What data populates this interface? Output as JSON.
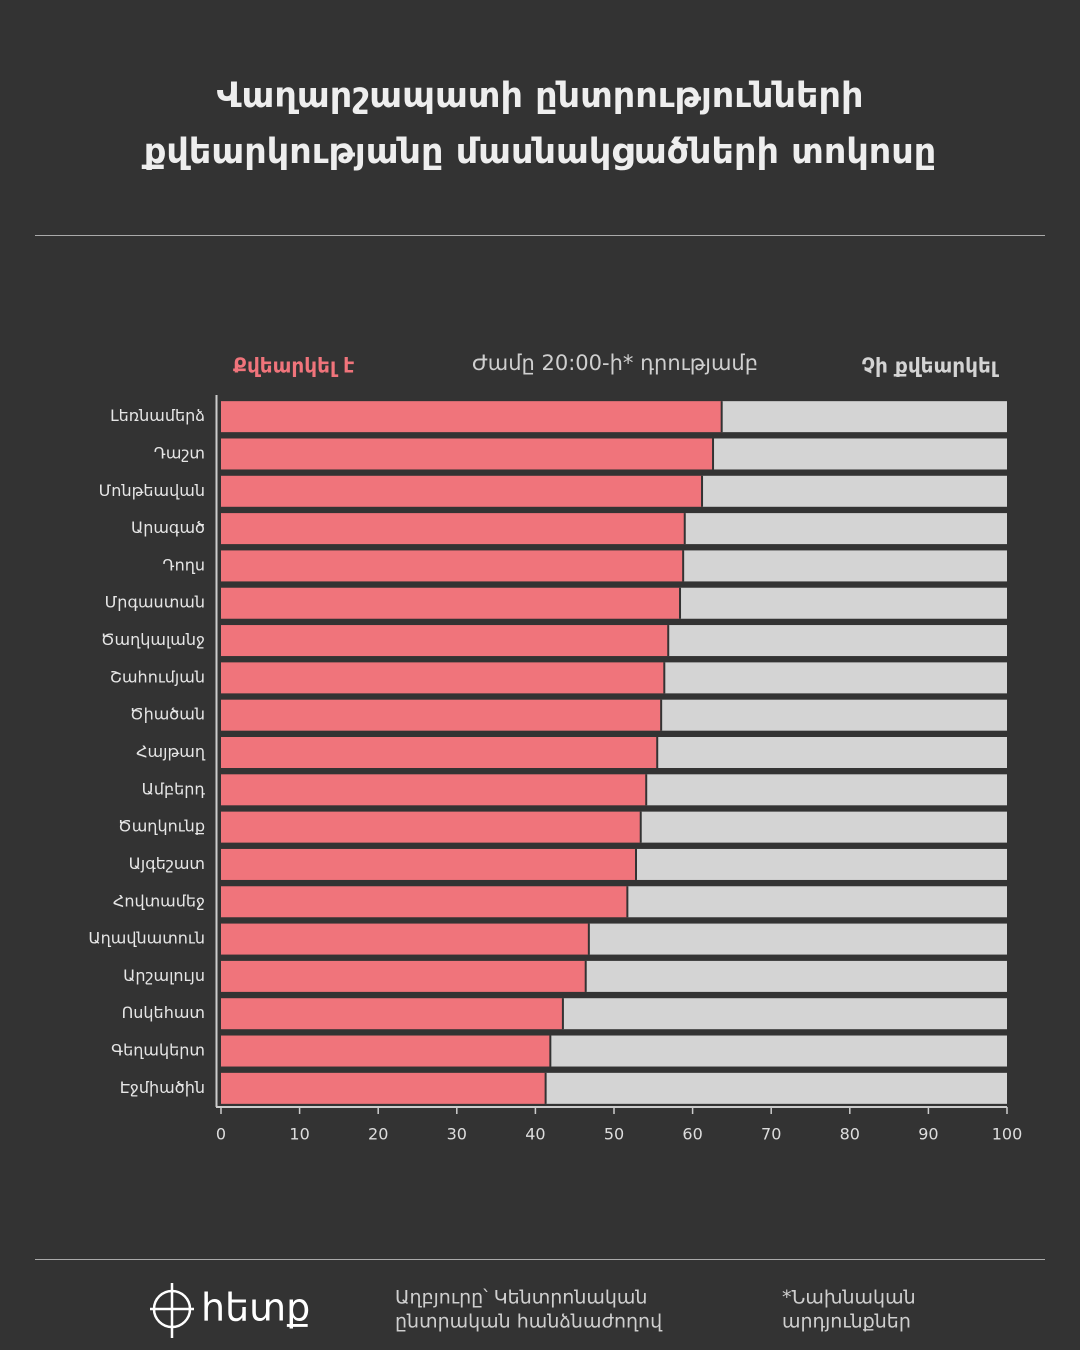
{
  "chart_data": {
    "type": "stacked-barh",
    "title": [
      "Վաղարշապատի ընտրությունների",
      "քվեարկությանը մասնակցածների տոկոսը"
    ],
    "subtitle": "Ժամը 20:00-ի* դրությամբ",
    "categories": [
      "Լեռնամերձ",
      "Դաշտ",
      "Մոնթեավան",
      "Արագած",
      "Դողս",
      "Մրգաստան",
      "Ծաղկալանջ",
      "Շահումյան",
      "Ծիածան",
      "Հայթաղ",
      "Ամբերդ",
      "Ծաղկունք",
      "Այգեշատ",
      "Հովտամեջ",
      "Աղավնատուն",
      "Արշալույս",
      "Ոսկեհատ",
      "Գեղակերտ",
      "Էջմիածին"
    ],
    "series": [
      {
        "name": "Քվեարկել է",
        "color": "#f0747b",
        "values": [
          63.7,
          62.6,
          61.2,
          59.0,
          58.8,
          58.4,
          56.9,
          56.4,
          56.0,
          55.5,
          54.1,
          53.4,
          52.8,
          51.7,
          46.8,
          46.4,
          43.5,
          41.9,
          41.3
        ]
      },
      {
        "name": "Չի քվեարկել",
        "color": "#d4d4d4",
        "values": [
          36.3,
          37.4,
          38.8,
          41.0,
          41.2,
          41.6,
          43.1,
          43.6,
          44.0,
          44.5,
          45.9,
          46.6,
          47.2,
          48.3,
          53.2,
          53.6,
          56.5,
          58.1,
          58.7
        ]
      }
    ],
    "xlim": [
      0,
      100
    ],
    "xticks": [
      0,
      10,
      20,
      30,
      40,
      50,
      60,
      70,
      80,
      90,
      100
    ]
  },
  "footer": {
    "logo": "հետք",
    "source": [
      "Աղբյուրը՝ Կենտրոնական",
      "ընտրական հանձնաժողով"
    ],
    "note": [
      "*Նախնական",
      "արդյունքներ"
    ]
  }
}
